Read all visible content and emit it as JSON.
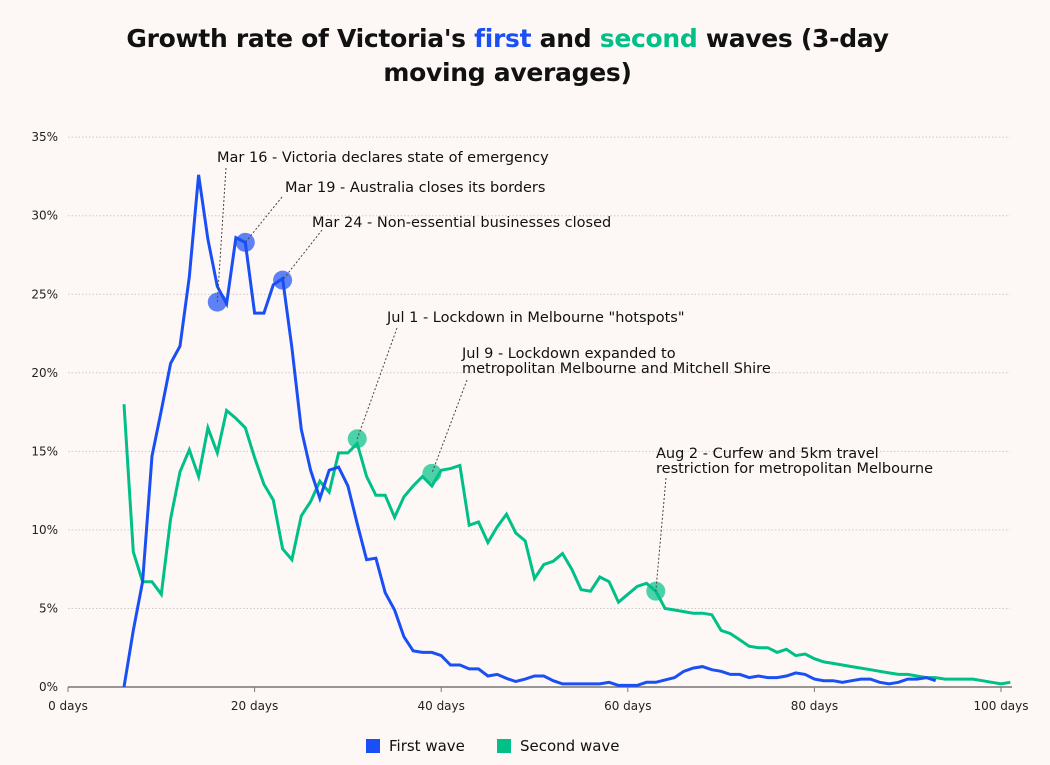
{
  "title": {
    "part1": "Growth rate of Victoria's ",
    "first": "first",
    "part2": " and ",
    "second": "second",
    "part3": " waves (3-day moving averages)"
  },
  "colors": {
    "first": "#1a4ff5",
    "second": "#00c088",
    "background": "#fdf8f5"
  },
  "chart_data": {
    "type": "line",
    "title": "Growth rate of Victoria's first and second waves (3-day moving averages)",
    "xlabel": "",
    "ylabel": "",
    "xlim": [
      0,
      101
    ],
    "ylim": [
      0,
      35
    ],
    "x_ticks": [
      0,
      20,
      40,
      60,
      80,
      100
    ],
    "x_tick_labels": [
      "0 days",
      "20 days",
      "40 days",
      "60 days",
      "80 days",
      "100 days"
    ],
    "y_ticks": [
      0,
      5,
      10,
      15,
      20,
      25,
      30,
      35
    ],
    "y_tick_labels": [
      "0%",
      "5%",
      "10%",
      "15%",
      "20%",
      "25%",
      "30%",
      "35%"
    ],
    "grid": true,
    "legend_position": "bottom-center",
    "series": [
      {
        "name": "First wave",
        "color": "#1a4ff5",
        "x_start": 6,
        "values": [
          0,
          3.6,
          6.7,
          14.7,
          17.6,
          20.6,
          21.7,
          26.1,
          32.6,
          28.5,
          25.5,
          24.4,
          28.6,
          28.3,
          23.8,
          23.8,
          25.6,
          26.0,
          21.6,
          16.4,
          13.8,
          12.0,
          13.8,
          14.0,
          12.8,
          10.4,
          8.1,
          8.2,
          6.0,
          4.9,
          3.2,
          2.3,
          2.2,
          2.2,
          2.0,
          1.4,
          1.4,
          1.15,
          1.15,
          0.7,
          0.8,
          0.55,
          0.35,
          0.5,
          0.7,
          0.7,
          0.4,
          0.2,
          0.2,
          0.2,
          0.2,
          0.2,
          0.3,
          0.1,
          0.1,
          0.1,
          0.3,
          0.3,
          0.45,
          0.6,
          1.0,
          1.2,
          1.3,
          1.1,
          1.0,
          0.8,
          0.8,
          0.6,
          0.7,
          0.6,
          0.6,
          0.7,
          0.9,
          0.8,
          0.5,
          0.4,
          0.4,
          0.3,
          0.4,
          0.5,
          0.5,
          0.3,
          0.2,
          0.3,
          0.5,
          0.5,
          0.6,
          0.4
        ]
      },
      {
        "name": "Second wave",
        "color": "#00c088",
        "x_start": 6,
        "values": [
          18.0,
          8.6,
          6.7,
          6.7,
          5.9,
          10.7,
          13.7,
          15.1,
          13.4,
          16.5,
          14.9,
          17.6,
          17.1,
          16.5,
          14.6,
          12.9,
          11.9,
          8.8,
          8.1,
          10.9,
          11.8,
          13.1,
          12.4,
          14.9,
          14.9,
          15.5,
          13.4,
          12.2,
          12.2,
          10.8,
          12.1,
          12.8,
          13.4,
          12.8,
          13.8,
          13.9,
          14.1,
          10.3,
          10.5,
          9.2,
          10.2,
          11.0,
          9.8,
          9.3,
          6.9,
          7.8,
          8.0,
          8.5,
          7.5,
          6.2,
          6.1,
          7.0,
          6.7,
          5.4,
          5.9,
          6.4,
          6.6,
          6.1,
          5.0,
          4.9,
          4.8,
          4.7,
          4.7,
          4.6,
          3.6,
          3.4,
          3.0,
          2.6,
          2.5,
          2.5,
          2.2,
          2.4,
          2.0,
          2.1,
          1.8,
          1.6,
          1.5,
          1.4,
          1.3,
          1.2,
          1.1,
          1.0,
          0.9,
          0.8,
          0.8,
          0.7,
          0.6,
          0.6,
          0.5,
          0.5,
          0.5,
          0.5,
          0.4,
          0.3,
          0.2,
          0.3
        ]
      }
    ],
    "annotations": [
      {
        "series": "First wave",
        "day": 16,
        "value": 24.5,
        "lines": [
          "Mar 16 - Victoria declares state of emergency"
        ]
      },
      {
        "series": "First wave",
        "day": 19,
        "value": 28.3,
        "lines": [
          "Mar 19 - Australia closes its borders"
        ]
      },
      {
        "series": "First wave",
        "day": 23,
        "value": 25.9,
        "lines": [
          "Mar 24 - Non-essential businesses closed"
        ]
      },
      {
        "series": "Second wave",
        "day": 31,
        "value": 15.8,
        "lines": [
          "Jul 1 - Lockdown in Melbourne \"hotspots\""
        ]
      },
      {
        "series": "Second wave",
        "day": 39,
        "value": 13.6,
        "lines": [
          "Jul 9 - Lockdown expanded to",
          "metropolitan Melbourne and Mitchell Shire"
        ]
      },
      {
        "series": "Second wave",
        "day": 63,
        "value": 6.1,
        "lines": [
          "Aug 2 - Curfew and 5km travel",
          "restriction for metropolitan Melbourne"
        ]
      }
    ]
  }
}
